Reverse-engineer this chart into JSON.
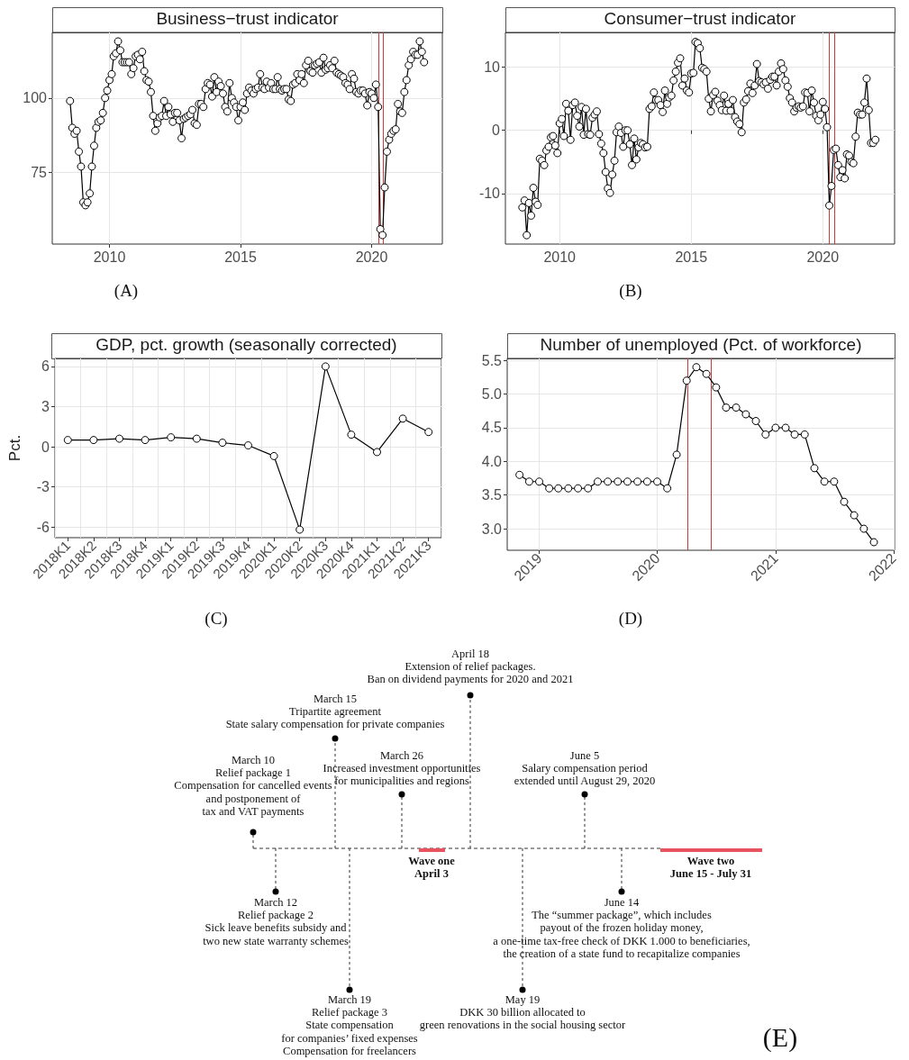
{
  "chart_data": [
    {
      "type": "line",
      "title": "Business−trust indicator",
      "color": "#000000",
      "marker": "circle",
      "grid": true,
      "x": [
        "2008-07",
        "2008-08",
        "2008-09",
        "2008-10",
        "2008-11",
        "2008-12",
        "2009-01",
        "2009-02",
        "2009-03",
        "2009-04",
        "2009-05",
        "2009-06",
        "2009-07",
        "2009-08",
        "2009-09",
        "2009-10",
        "2009-11",
        "2009-12",
        "2010-01",
        "2010-02",
        "2010-03",
        "2010-04",
        "2010-05",
        "2010-06",
        "2010-07",
        "2010-08",
        "2010-09",
        "2010-10",
        "2010-11",
        "2010-12",
        "2011-01",
        "2011-02",
        "2011-03",
        "2011-04",
        "2011-05",
        "2011-06",
        "2011-07",
        "2011-08",
        "2011-09",
        "2011-10",
        "2011-11",
        "2011-12",
        "2012-01",
        "2012-02",
        "2012-03",
        "2012-04",
        "2012-05",
        "2012-06",
        "2012-07",
        "2012-08",
        "2012-09",
        "2012-10",
        "2012-11",
        "2012-12",
        "2013-01",
        "2013-02",
        "2013-03",
        "2013-04",
        "2013-05",
        "2013-06",
        "2013-07",
        "2013-08",
        "2013-09",
        "2013-10",
        "2013-11",
        "2013-12",
        "2014-01",
        "2014-02",
        "2014-03",
        "2014-04",
        "2014-05",
        "2014-06",
        "2014-07",
        "2014-08",
        "2014-09",
        "2014-10",
        "2014-11",
        "2014-12",
        "2015-01",
        "2015-02",
        "2015-03",
        "2015-04",
        "2015-05",
        "2015-06",
        "2015-07",
        "2015-08",
        "2015-09",
        "2015-10",
        "2015-11",
        "2015-12",
        "2016-01",
        "2016-02",
        "2016-03",
        "2016-04",
        "2016-05",
        "2016-06",
        "2016-07",
        "2016-08",
        "2016-09",
        "2016-10",
        "2016-11",
        "2016-12",
        "2017-01",
        "2017-02",
        "2017-03",
        "2017-04",
        "2017-05",
        "2017-06",
        "2017-07",
        "2017-08",
        "2017-09",
        "2017-10",
        "2017-11",
        "2017-12",
        "2018-01",
        "2018-02",
        "2018-03",
        "2018-04",
        "2018-05",
        "2018-06",
        "2018-07",
        "2018-08",
        "2018-09",
        "2018-10",
        "2018-11",
        "2018-12",
        "2019-01",
        "2019-02",
        "2019-03",
        "2019-04",
        "2019-05",
        "2019-06",
        "2019-07",
        "2019-08",
        "2019-09",
        "2019-10",
        "2019-11",
        "2019-12",
        "2020-01",
        "2020-02",
        "2020-03",
        "2020-04",
        "2020-05",
        "2020-06",
        "2020-07",
        "2020-08",
        "2020-09",
        "2020-10",
        "2020-11",
        "2020-12",
        "2021-01",
        "2021-02",
        "2021-03",
        "2021-04",
        "2021-05",
        "2021-06",
        "2021-07",
        "2021-08",
        "2021-09",
        "2021-10",
        "2021-11",
        "2021-12",
        "2022-01"
      ],
      "values": [
        99,
        90,
        88,
        89,
        82,
        77,
        65,
        64,
        65,
        68,
        77,
        84,
        90,
        92,
        92.5,
        95,
        100,
        102.5,
        106,
        108,
        114,
        115,
        119,
        116,
        112,
        112,
        112,
        112,
        108,
        110,
        114,
        114.5,
        113,
        115.5,
        109,
        106,
        105.5,
        102,
        94,
        89,
        91.5,
        93.5,
        94,
        99,
        94,
        97,
        94.5,
        92,
        95,
        95,
        92.5,
        86.5,
        93,
        93.5,
        94,
        94.5,
        96,
        91.5,
        91,
        98,
        98,
        97,
        103,
        105,
        104.5,
        100.5,
        107,
        102,
        105.5,
        104,
        101.5,
        97,
        95.5,
        105,
        100,
        98.5,
        97,
        92.5,
        97,
        98.5,
        96,
        101.5,
        103.5,
        102.5,
        101.5,
        103,
        103.5,
        108,
        103.5,
        103,
        105.5,
        103.5,
        105,
        103,
        103,
        107,
        103,
        102.5,
        103,
        103,
        99.5,
        99,
        104.5,
        105,
        108,
        106,
        108,
        105,
        111,
        112.5,
        109,
        108.5,
        111,
        111.5,
        112,
        108.5,
        113.5,
        109.5,
        110,
        111,
        110,
        112.5,
        108.5,
        108,
        107.5,
        107,
        105,
        104.5,
        103,
        108,
        106.5,
        102,
        101.5,
        102.5,
        102.5,
        101.5,
        97.5,
        102,
        101.5,
        100,
        104.5,
        97,
        56,
        54,
        70,
        82,
        86,
        88,
        89,
        89.5,
        98,
        95.5,
        95,
        102,
        106,
        111,
        113,
        115.5,
        114.5,
        114.5,
        119,
        115.5,
        112
      ],
      "xlim": [
        "2007-10-27",
        "2022-09-12"
      ],
      "ylim": [
        51,
        122
      ],
      "xticks": [
        "2010",
        "2015",
        "2020"
      ],
      "yticks": [
        75,
        100
      ],
      "ref_lines": [
        {
          "axis": "x",
          "value": "2020-04-03",
          "color": "#cc3b3b"
        },
        {
          "axis": "x",
          "value": "2020-06-15",
          "color": "#cc3b3b"
        }
      ],
      "annotations": [
        "(A)"
      ]
    },
    {
      "type": "line",
      "title": "Consumer−trust indicator",
      "color": "#000000",
      "marker": "circle",
      "grid": true,
      "x": [
        "2008-08",
        "2008-09",
        "2008-10",
        "2008-11",
        "2008-12",
        "2009-01",
        "2009-02",
        "2009-03",
        "2009-04",
        "2009-05",
        "2009-06",
        "2009-07",
        "2009-08",
        "2009-09",
        "2009-10",
        "2009-11",
        "2009-12",
        "2010-01",
        "2010-02",
        "2010-03",
        "2010-04",
        "2010-05",
        "2010-06",
        "2010-07",
        "2010-08",
        "2010-09",
        "2010-10",
        "2010-11",
        "2010-12",
        "2011-01",
        "2011-02",
        "2011-03",
        "2011-04",
        "2011-05",
        "2011-06",
        "2011-07",
        "2011-08",
        "2011-09",
        "2011-10",
        "2011-11",
        "2011-12",
        "2012-01",
        "2012-02",
        "2012-03",
        "2012-04",
        "2012-05",
        "2012-06",
        "2012-07",
        "2012-08",
        "2012-09",
        "2012-10",
        "2012-11",
        "2012-12",
        "2013-01",
        "2013-02",
        "2013-03",
        "2013-04",
        "2013-05",
        "2013-06",
        "2013-07",
        "2013-08",
        "2013-09",
        "2013-10",
        "2013-11",
        "2013-12",
        "2014-01",
        "2014-02",
        "2014-03",
        "2014-04",
        "2014-05",
        "2014-06",
        "2014-07",
        "2014-08",
        "2014-09",
        "2014-10",
        "2014-11",
        "2014-12",
        "2015-01",
        "2015-02",
        "2015-03",
        "2015-04",
        "2015-05",
        "2015-06",
        "2015-07",
        "2015-08",
        "2015-09",
        "2015-10",
        "2015-11",
        "2015-12",
        "2016-01",
        "2016-02",
        "2016-03",
        "2016-04",
        "2016-05",
        "2016-06",
        "2016-07",
        "2016-08",
        "2016-09",
        "2016-10",
        "2016-11",
        "2016-12",
        "2017-01",
        "2017-02",
        "2017-03",
        "2017-04",
        "2017-05",
        "2017-06",
        "2017-07",
        "2017-08",
        "2017-09",
        "2017-10",
        "2017-11",
        "2017-12",
        "2018-01",
        "2018-02",
        "2018-03",
        "2018-04",
        "2018-05",
        "2018-06",
        "2018-07",
        "2018-08",
        "2018-09",
        "2018-10",
        "2018-11",
        "2018-12",
        "2019-01",
        "2019-02",
        "2019-03",
        "2019-04",
        "2019-05",
        "2019-06",
        "2019-07",
        "2019-08",
        "2019-09",
        "2019-10",
        "2019-11",
        "2019-12",
        "2020-01",
        "2020-02",
        "2020-03",
        "2020-04",
        "2020-05",
        "2020-06",
        "2020-07",
        "2020-08",
        "2020-09",
        "2020-10",
        "2020-11",
        "2020-12",
        "2021-01",
        "2021-02",
        "2021-03",
        "2021-04",
        "2021-05",
        "2021-06",
        "2021-07",
        "2021-08",
        "2021-09",
        "2021-10",
        "2021-11",
        "2021-12",
        "2022-01"
      ],
      "values": [
        -12.2,
        -11.1,
        -16.6,
        -11.5,
        -13.5,
        -9.1,
        -11.3,
        -11.8,
        -4.5,
        -4.8,
        -5.5,
        -3.2,
        -2.6,
        -1.1,
        -0.9,
        -2.4,
        -3.6,
        1.1,
        1.8,
        -0.9,
        4.2,
        3.1,
        -1.5,
        4.0,
        4.4,
        2.3,
        0.6,
        3.7,
        -0.7,
        3.4,
        -0.6,
        -0.7,
        2.0,
        2.5,
        3.0,
        -0.6,
        -2.1,
        -3.6,
        -6.6,
        -9.2,
        -9.9,
        -7.0,
        -4.8,
        -0.3,
        0.6,
        -0.4,
        -2.6,
        0.0,
        0.0,
        -2.2,
        -5.5,
        -1.3,
        -4.6,
        -2.7,
        -2.0,
        -2.2,
        -2.7,
        -2.6,
        3.4,
        3.8,
        6.0,
        4.8,
        4.8,
        4.0,
        2.9,
        6.3,
        4.2,
        5.2,
        5.5,
        7.9,
        9.3,
        10.7,
        11.4,
        7.1,
        8.2,
        6.3,
        6.0,
        9.0,
        9.1,
        14.0,
        13.8,
        13.0,
        9.9,
        9.7,
        9.3,
        5.0,
        3.0,
        5.6,
        6.1,
        4.7,
        4.0,
        3.2,
        5.5,
        3.1,
        4.2,
        3.1,
        4.8,
        2.1,
        1.4,
        1.0,
        -0.3,
        4.4,
        4.9,
        6.2,
        7.4,
        5.9,
        7.1,
        10.5,
        7.8,
        7.6,
        7.3,
        7.6,
        6.6,
        8.0,
        8.5,
        8.5,
        7.1,
        9.3,
        10.6,
        9.7,
        7.9,
        6.9,
        5.1,
        4.4,
        3.0,
        3.6,
        3.8,
        3.6,
        3.8,
        6.0,
        5.9,
        3.0,
        6.3,
        4.4,
        2.3,
        1.6,
        2.5,
        4.5,
        3.4,
        0.5,
        -11.9,
        -8.8,
        -3.1,
        -2.9,
        -5.5,
        -7.4,
        -6.3,
        -7.6,
        -3.8,
        -4.0,
        -5.0,
        -5.2,
        -1.0,
        2.8,
        2.5,
        2.5,
        4.4,
        8.2,
        3.2,
        -2.0,
        -2.0,
        -1.5
      ],
      "xlim": [
        "2007-12-10",
        "2022-09-24"
      ],
      "ylim": [
        -18,
        15.5
      ],
      "xticks": [
        "2010",
        "2015",
        "2020"
      ],
      "yticks": [
        -10,
        0,
        10
      ],
      "ref_lines": [
        {
          "axis": "x",
          "value": "2020-04-03",
          "color": "#cc3b3b"
        },
        {
          "axis": "x",
          "value": "2020-06-15",
          "color": "#cc3b3b"
        }
      ],
      "annotations": [
        "(B)"
      ]
    },
    {
      "type": "line",
      "title": "GDP, pct. growth (seasonally corrected)",
      "ylabel": "Pct.",
      "color": "#000000",
      "marker": "circle",
      "grid": true,
      "categories": [
        "2018K1",
        "2018K2",
        "2018K3",
        "2018K4",
        "2019K1",
        "2019K2",
        "2019K3",
        "2019K4",
        "2020K1",
        "2020K2",
        "2020K3",
        "2020K4",
        "2021K1",
        "2021K2",
        "2021K3"
      ],
      "values": [
        0.5,
        0.5,
        0.6,
        0.5,
        0.7,
        0.6,
        0.3,
        0.1,
        -0.7,
        -6.2,
        6.0,
        0.9,
        -0.4,
        2.1,
        1.1
      ],
      "ylim": [
        -6.8,
        6.6
      ],
      "yticks": [
        -6,
        -3,
        0,
        3,
        6
      ],
      "annotations": [
        "(C)"
      ]
    },
    {
      "type": "line",
      "title": "Number of unemployed (Pct. of workforce)",
      "color": "#000000",
      "marker": "circle",
      "grid": true,
      "x": [
        "2018-11",
        "2018-12",
        "2019-01",
        "2019-02",
        "2019-03",
        "2019-04",
        "2019-05",
        "2019-06",
        "2019-07",
        "2019-08",
        "2019-09",
        "2019-10",
        "2019-11",
        "2019-12",
        "2020-01",
        "2020-02",
        "2020-03",
        "2020-04",
        "2020-05",
        "2020-06",
        "2020-07",
        "2020-08",
        "2020-09",
        "2020-10",
        "2020-11",
        "2020-12",
        "2021-01",
        "2021-02",
        "2021-03",
        "2021-04",
        "2021-05",
        "2021-06",
        "2021-07",
        "2021-08",
        "2021-09",
        "2021-10",
        "2021-11"
      ],
      "values": [
        3.8,
        3.7,
        3.7,
        3.6,
        3.6,
        3.6,
        3.6,
        3.6,
        3.7,
        3.7,
        3.7,
        3.7,
        3.7,
        3.7,
        3.7,
        3.6,
        4.1,
        5.2,
        5.4,
        5.3,
        5.1,
        4.8,
        4.8,
        4.7,
        4.6,
        4.4,
        4.5,
        4.5,
        4.4,
        4.4,
        3.9,
        3.7,
        3.7,
        3.4,
        3.2,
        3.0,
        2.8
      ],
      "xlim": [
        "2018-09-24",
        "2022-01-04"
      ],
      "ylim": [
        2.68,
        5.53
      ],
      "xticks": [
        "2019",
        "2020",
        "2021",
        "2022"
      ],
      "yticks": [
        {
          "value": 3,
          "label": "3.0"
        },
        3.5,
        {
          "value": 4,
          "label": "4.0"
        },
        4.5,
        {
          "value": 5,
          "label": "5.0"
        },
        5.5
      ],
      "ref_lines": [
        {
          "axis": "x",
          "value": "2020-04-03",
          "color": "#cc3b3b"
        },
        {
          "axis": "x",
          "value": "2020-06-15",
          "color": "#cc3b3b"
        }
      ],
      "annotations": [
        "(D)"
      ]
    },
    {
      "type": "other",
      "annotations": [
        "March 10\nRelief package 1\nCompensation for cancelled events\nand postponement of\ntax and VAT payments",
        "March 15\nTripartite agreement\nState salary compensation for private companies",
        "March 26\nIncreased investment opportunities\nfor municipalities and regions",
        "April 18\nExtension of relief packages.\nBan on dividend payments for 2020 and 2021",
        "June 5\nSalary compensation period\nextended until August 29, 2020",
        "March 12\nRelief package 2\nSick leave benefits subsidy and\ntwo new state warranty schemes",
        "March 19\nRelief package 3\nState compensation\nfor companies’ fixed expenses\nCompensation for freelancers",
        "May 19\nDKK 30 billion allocated to\ngreen renovations in the social housing sector",
        "June 14\nThe “summer package”, which includes\npayout of the frozen holiday money,\na one-time tax-free check of DKK 1.000 to beneficiaries,\nthe creation of a state fund to recapitalize companies",
        "Wave one\nApril 3",
        "Wave two\nJune 15 - July 31",
        "(E)"
      ]
    }
  ]
}
